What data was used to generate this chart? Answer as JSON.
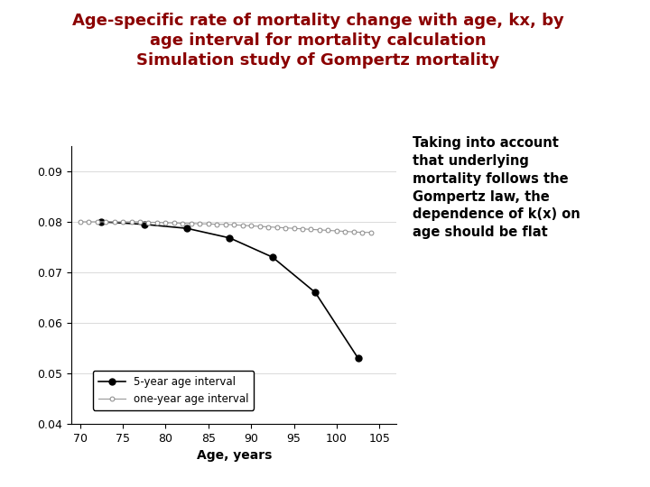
{
  "title_line1": "Age-specific rate of mortality change with age, kx, by",
  "title_line2": "age interval for mortality calculation",
  "title_line3": "Simulation study of Gompertz mortality",
  "title_color": "#8B0000",
  "title_fontsize": 13,
  "annotation_text": "Taking into account\nthat underlying\nmortality follows the\nGompertz law, the\ndependence of k(x) on\nage should be flat",
  "annotation_fontsize": 10.5,
  "xlabel": "Age, years",
  "xlabel_fontsize": 10,
  "ylim": [
    0.04,
    0.095
  ],
  "xlim": [
    69,
    107
  ],
  "yticks": [
    0.04,
    0.05,
    0.06,
    0.07,
    0.08,
    0.09
  ],
  "xticks": [
    70,
    75,
    80,
    85,
    90,
    95,
    100,
    105
  ],
  "five_year_x": [
    72.5,
    77.5,
    82.5,
    87.5,
    92.5,
    97.5,
    102.5
  ],
  "five_year_y": [
    0.08,
    0.0795,
    0.0787,
    0.0768,
    0.073,
    0.066,
    0.053
  ],
  "one_year_x": [
    70,
    71,
    72,
    73,
    74,
    75,
    76,
    77,
    78,
    79,
    80,
    81,
    82,
    83,
    84,
    85,
    86,
    87,
    88,
    89,
    90,
    91,
    92,
    93,
    94,
    95,
    96,
    97,
    98,
    99,
    100,
    101,
    102,
    103,
    104
  ],
  "one_year_y": [
    0.08,
    0.08,
    0.08,
    0.08,
    0.08,
    0.08,
    0.08,
    0.08,
    0.0799,
    0.0799,
    0.0798,
    0.0798,
    0.0797,
    0.0797,
    0.0796,
    0.0796,
    0.0795,
    0.0795,
    0.0794,
    0.0793,
    0.0792,
    0.0791,
    0.079,
    0.0789,
    0.0788,
    0.0787,
    0.0786,
    0.0785,
    0.0784,
    0.0783,
    0.0782,
    0.0781,
    0.078,
    0.0779,
    0.0779
  ],
  "legend_5year_label": "5-year age interval",
  "legend_1year_label": "one-year age interval",
  "background_color": "#ffffff",
  "left_bar_color": "#8B0000"
}
